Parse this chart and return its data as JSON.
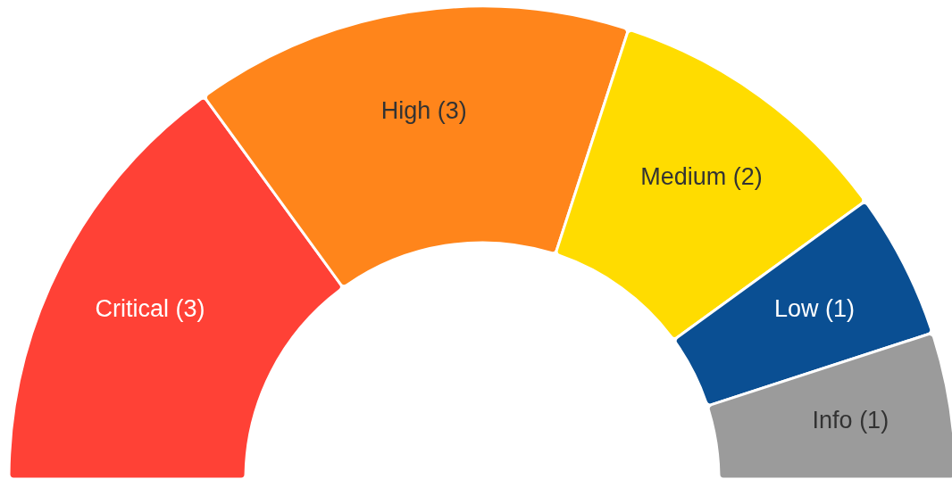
{
  "chart_data": {
    "type": "donut",
    "categories": [
      "Critical (3)",
      "High (3)",
      "Medium (2)",
      "Low (1)",
      "Info (1)"
    ],
    "values": [
      3,
      3,
      2,
      1,
      1
    ],
    "colors": [
      "#ff4136",
      "#ff851b",
      "#ffdc00",
      "#0a4f93",
      "#9b9b9b"
    ]
  }
}
